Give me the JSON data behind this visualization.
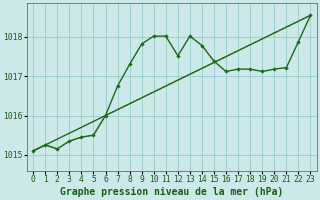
{
  "xlabel": "Graphe pression niveau de la mer (hPa)",
  "ylim": [
    1014.6,
    1018.85
  ],
  "xlim": [
    -0.5,
    23.5
  ],
  "yticks": [
    1015,
    1016,
    1017,
    1018
  ],
  "xticks": [
    0,
    1,
    2,
    3,
    4,
    5,
    6,
    7,
    8,
    9,
    10,
    11,
    12,
    13,
    14,
    15,
    16,
    17,
    18,
    19,
    20,
    21,
    22,
    23
  ],
  "background_color": "#cce8e8",
  "grid_color": "#99cccc",
  "line_color": "#1a6b1a",
  "series1_x": [
    0,
    1,
    2,
    3,
    4,
    5,
    6,
    7,
    8,
    9,
    10,
    11,
    12,
    13,
    14,
    15,
    16,
    17,
    18,
    19,
    20,
    21,
    22,
    23
  ],
  "series1_y": [
    1015.1,
    1015.25,
    1015.15,
    1015.35,
    1015.45,
    1015.5,
    1016.0,
    1016.75,
    1017.3,
    1017.82,
    1018.02,
    1018.02,
    1017.52,
    1018.02,
    1017.78,
    1017.38,
    1017.12,
    1017.18,
    1017.18,
    1017.12,
    1017.18,
    1017.22,
    1017.88,
    1018.55
  ],
  "series2_x": [
    0,
    23
  ],
  "series2_y": [
    1015.1,
    1018.55
  ],
  "series3_x": [
    0,
    1,
    2,
    3,
    4,
    5,
    6,
    23
  ],
  "series3_y": [
    1015.1,
    1015.25,
    1015.15,
    1015.35,
    1015.45,
    1015.5,
    1016.0,
    1018.55
  ],
  "tick_fontsize": 5.8,
  "label_fontsize": 7.0
}
